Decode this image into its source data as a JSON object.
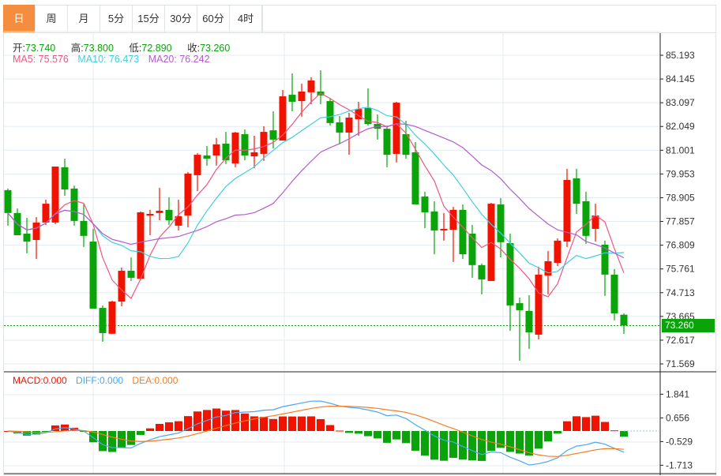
{
  "tabs": [
    {
      "label": "日",
      "active": true
    },
    {
      "label": "周"
    },
    {
      "label": "月"
    },
    {
      "label": "5分"
    },
    {
      "label": "15分"
    },
    {
      "label": "30分"
    },
    {
      "label": "60分"
    },
    {
      "label": "4时"
    }
  ],
  "ohlc_legend": {
    "open_label": "开:",
    "open": "73.740",
    "high_label": "高:",
    "high": "73.800",
    "low_label": "低:",
    "low": "72.890",
    "close_label": "收:",
    "close": "73.260"
  },
  "ma_legend": {
    "ma5": "MA5: 75.576",
    "ma10": "MA10: 76.473",
    "ma20": "MA20: 76.242"
  },
  "macd_legend": {
    "macd": "MACD:0.000",
    "diff": "DIFF:0.000",
    "dea": "DEA:0.000"
  },
  "current_price": "73.260",
  "colors": {
    "up": "#f01400",
    "down": "#0aa40a",
    "ma5": "#f0557f",
    "ma10": "#3fcfe0",
    "ma20": "#b45ccb",
    "diff": "#4aa8f0",
    "dea": "#f57d22",
    "accent": "#f58d3e"
  },
  "chart_data": {
    "type": "candlestick",
    "price_ticks": [
      "85.193",
      "84.145",
      "83.097",
      "82.049",
      "81.001",
      "79.953",
      "78.905",
      "77.857",
      "76.809",
      "75.761",
      "74.713",
      "73.665",
      "72.617",
      "71.569"
    ],
    "ylim": [
      71.569,
      85.193
    ],
    "macd_ticks": [
      "1.841",
      "0.656",
      "-0.529",
      "-1.713"
    ],
    "macd_ylim": [
      -1.713,
      1.841
    ],
    "candles": [
      [
        79.24,
        79.31,
        77.67,
        78.23
      ],
      [
        78.23,
        78.43,
        77.25,
        77.25
      ],
      [
        77.32,
        78.02,
        76.45,
        76.97
      ],
      [
        77.04,
        78.05,
        76.2,
        77.81
      ],
      [
        77.81,
        78.82,
        77.7,
        78.64
      ],
      [
        77.81,
        80.28,
        77.74,
        80.28
      ],
      [
        80.25,
        80.63,
        78.99,
        79.27
      ],
      [
        79.31,
        79.44,
        77.67,
        77.88
      ],
      [
        77.88,
        78.61,
        76.73,
        77.22
      ],
      [
        76.97,
        77.53,
        74.01,
        74.01
      ],
      [
        74.04,
        74.15,
        72.55,
        72.93
      ],
      [
        72.9,
        74.36,
        72.9,
        74.32
      ],
      [
        74.32,
        75.82,
        74.11,
        75.68
      ],
      [
        75.68,
        76.27,
        75.23,
        75.37
      ],
      [
        75.33,
        78.3,
        75.26,
        78.26
      ],
      [
        78.12,
        78.37,
        77.25,
        78.19
      ],
      [
        78.23,
        79.34,
        77.91,
        78.33
      ],
      [
        78.37,
        78.92,
        77.7,
        77.91
      ],
      [
        77.67,
        78.82,
        77.46,
        78.09
      ],
      [
        78.12,
        80.04,
        77.6,
        79.97
      ],
      [
        79.9,
        80.87,
        79.2,
        80.8
      ],
      [
        80.77,
        81.19,
        80.32,
        80.63
      ],
      [
        80.77,
        81.54,
        80.32,
        81.26
      ],
      [
        81.29,
        81.81,
        80.39,
        80.56
      ],
      [
        80.42,
        81.81,
        80.25,
        81.78
      ],
      [
        81.71,
        81.92,
        80.56,
        80.77
      ],
      [
        80.73,
        81.64,
        80.21,
        80.91
      ],
      [
        80.84,
        82.06,
        80.53,
        81.81
      ],
      [
        81.88,
        82.72,
        81.08,
        81.47
      ],
      [
        81.43,
        83.66,
        81.43,
        83.38
      ],
      [
        83.45,
        84.39,
        82.72,
        83.14
      ],
      [
        83.17,
        83.94,
        82.48,
        83.59
      ],
      [
        83.56,
        84.22,
        83.03,
        84.08
      ],
      [
        83.59,
        84.53,
        83.03,
        83.42
      ],
      [
        83.17,
        83.28,
        82.09,
        82.2
      ],
      [
        82.23,
        82.51,
        81.26,
        81.78
      ],
      [
        81.78,
        82.65,
        80.8,
        82.44
      ],
      [
        82.37,
        83.14,
        81.64,
        82.82
      ],
      [
        82.86,
        83.73,
        82.09,
        82.16
      ],
      [
        82.16,
        82.58,
        81.47,
        81.95
      ],
      [
        81.95,
        82.09,
        80.25,
        80.8
      ],
      [
        80.84,
        83.14,
        80.46,
        83.1
      ],
      [
        81.71,
        82.3,
        80.63,
        80.8
      ],
      [
        80.91,
        81.36,
        78.61,
        78.61
      ],
      [
        78.96,
        79.17,
        77.56,
        78.26
      ],
      [
        78.3,
        78.75,
        76.41,
        77.46
      ],
      [
        77.46,
        78.23,
        77.01,
        77.53
      ],
      [
        77.49,
        78.5,
        76.07,
        78.37
      ],
      [
        78.37,
        78.61,
        76.2,
        76.41
      ],
      [
        77.32,
        77.7,
        75.37,
        75.93
      ],
      [
        75.93,
        76.0,
        74.64,
        75.3
      ],
      [
        75.23,
        78.68,
        75.23,
        78.64
      ],
      [
        78.61,
        78.89,
        76.27,
        76.94
      ],
      [
        76.9,
        77.32,
        73.03,
        74.15
      ],
      [
        74.25,
        74.5,
        71.71,
        73.94
      ],
      [
        73.91,
        74.6,
        72.23,
        72.96
      ],
      [
        72.86,
        75.86,
        72.65,
        75.51
      ],
      [
        75.47,
        76.55,
        74.64,
        76.1
      ],
      [
        76.03,
        77.11,
        75.89,
        77.01
      ],
      [
        76.97,
        80.18,
        76.73,
        79.69
      ],
      [
        79.76,
        80.18,
        78.19,
        78.64
      ],
      [
        78.75,
        79.17,
        76.87,
        77.22
      ],
      [
        77.53,
        78.64,
        76.97,
        78.12
      ],
      [
        76.83,
        77.01,
        74.57,
        75.51
      ],
      [
        75.51,
        75.75,
        73.49,
        73.8
      ],
      [
        73.74,
        73.8,
        72.89,
        73.26
      ]
    ]
  }
}
